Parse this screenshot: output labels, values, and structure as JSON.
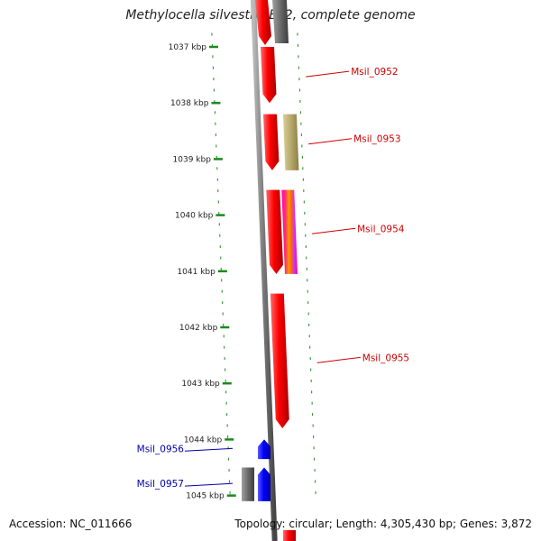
{
  "title": "Methylocella silvestris BL2, complete genome",
  "accession_label": "Accession: NC_011666",
  "summary_label": "Topology: circular; Length: 4,305,430 bp; Genes: 3,872",
  "colors": {
    "forward_gene": "#ff0000",
    "reverse_gene": "#0000ff",
    "other_feature": "#707070",
    "label_forward": "#cc0000",
    "label_reverse": "#0000aa",
    "ruler_dash": "#1a8a1a",
    "backbone": "#777777",
    "annotation_band": "#b5a86a"
  },
  "chart_data": {
    "type": "genome-map",
    "region_start_kbp": 1036.6,
    "region_end_kbp": 1045.6,
    "scale_ticks_kbp": [
      1037,
      1038,
      1039,
      1040,
      1041,
      1042,
      1043,
      1044,
      1045
    ],
    "tick_suffix": " kbp",
    "genes": [
      {
        "id": "Msil_0952",
        "label": "Msil_0952",
        "strand": "+",
        "start_kbp": 1037.0,
        "end_kbp": 1038.0
      },
      {
        "id": "Msil_0953",
        "label": "Msil_0953",
        "strand": "+",
        "start_kbp": 1038.2,
        "end_kbp": 1039.2
      },
      {
        "id": "Msil_0954",
        "label": "Msil_0954",
        "strand": "+",
        "start_kbp": 1039.55,
        "end_kbp": 1041.05
      },
      {
        "id": "Msil_0955",
        "label": "Msil_0955",
        "strand": "+",
        "start_kbp": 1041.4,
        "end_kbp": 1043.8
      },
      {
        "id": "Msil_0956",
        "label": "Msil_0956",
        "strand": "-",
        "start_kbp": 1044.0,
        "end_kbp": 1044.35
      },
      {
        "id": "Msil_0957",
        "label": "Msil_0957",
        "strand": "-",
        "start_kbp": 1044.5,
        "end_kbp": 1045.1
      }
    ]
  }
}
